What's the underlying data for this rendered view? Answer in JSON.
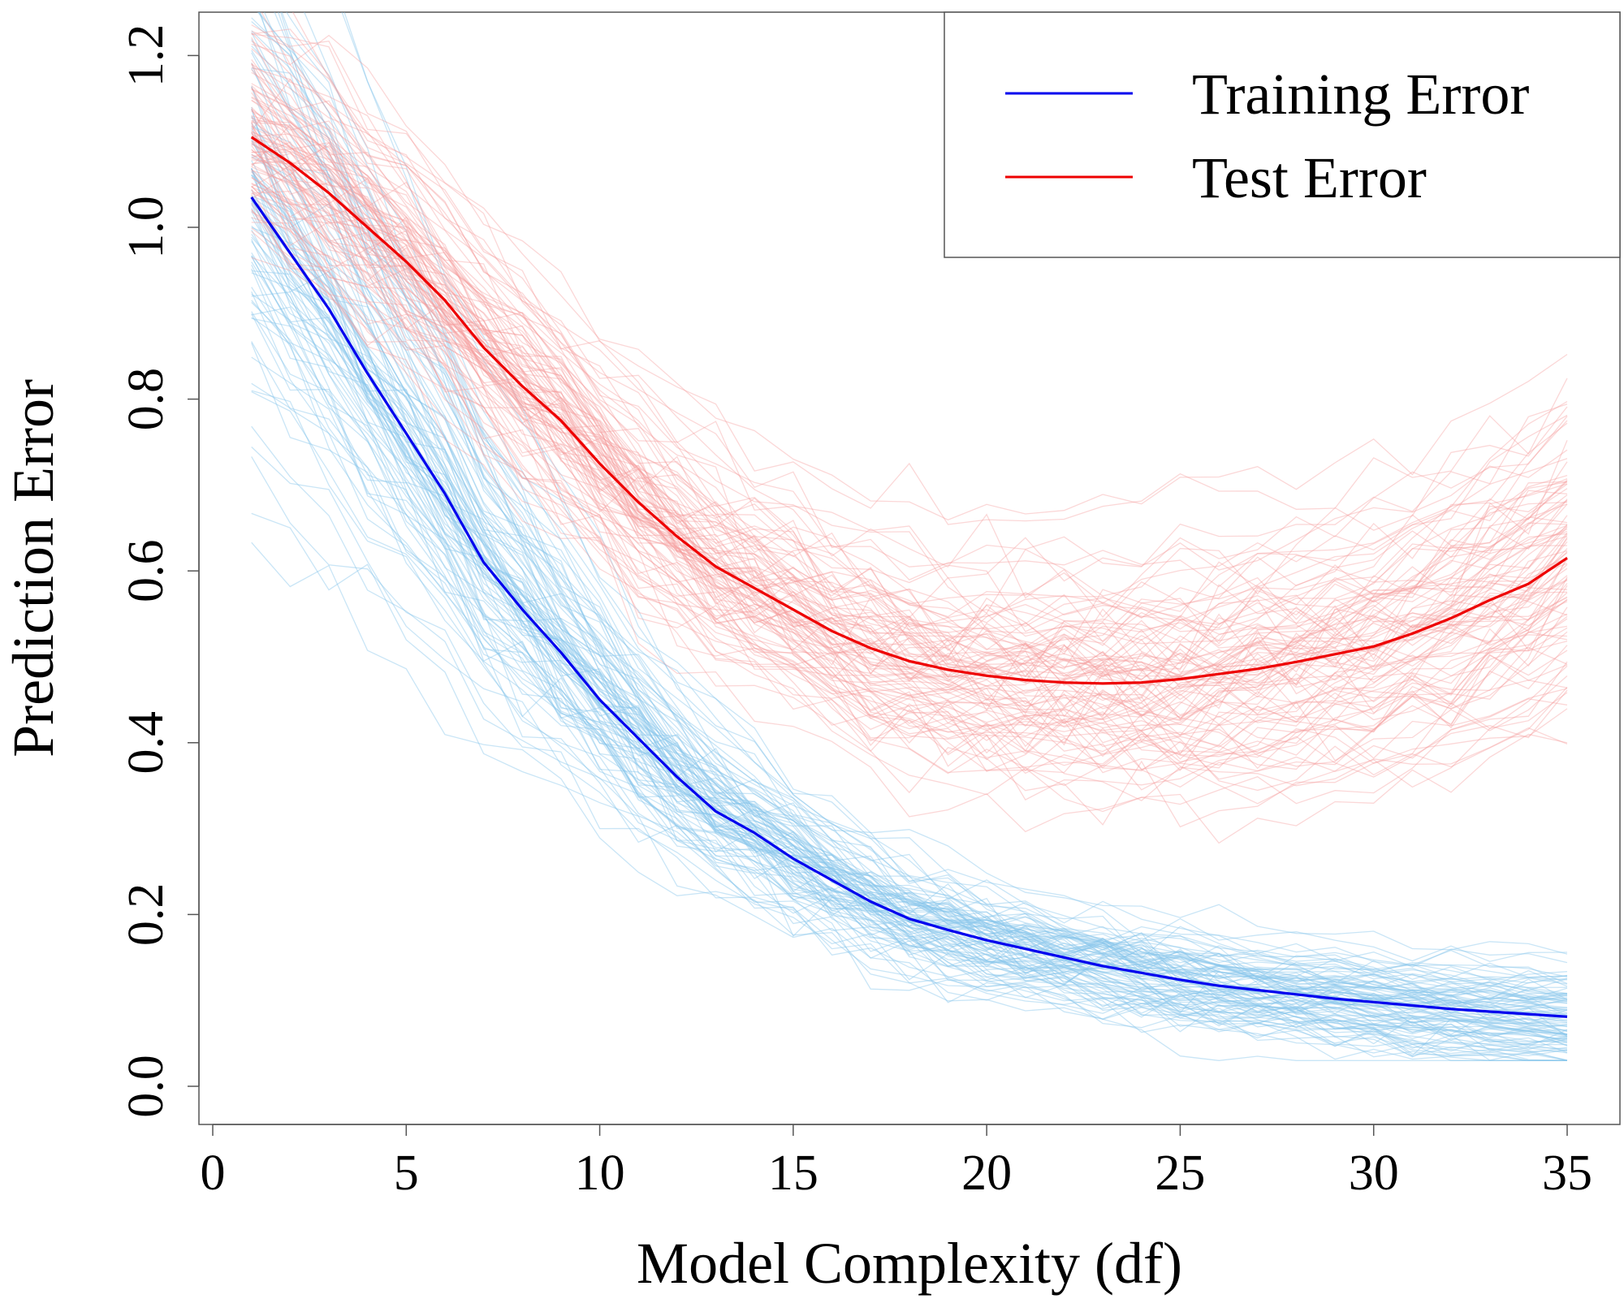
{
  "chart_data": {
    "type": "line",
    "title": "",
    "xlabel": "Model Complexity (df)",
    "ylabel": "Prediction Error",
    "xlim": [
      -0.5,
      36.5
    ],
    "ylim": [
      -0.08,
      1.25
    ],
    "x_ticks": [
      0,
      5,
      10,
      15,
      20,
      25,
      30,
      35
    ],
    "x_tick_labels": [
      "0",
      "5",
      "10",
      "15",
      "20",
      "25",
      "30",
      "35"
    ],
    "y_ticks": [
      0.0,
      0.2,
      0.4,
      0.6,
      0.8,
      1.0,
      1.2
    ],
    "y_tick_labels": [
      "0.0",
      "0.2",
      "0.4",
      "0.6",
      "0.8",
      "1.0",
      "1.2"
    ],
    "grid": false,
    "legend_position": "top-right",
    "legend": [
      {
        "label": "Training Error",
        "color": "#0000ee"
      },
      {
        "label": "Test Error",
        "color": "#ee0000"
      }
    ],
    "x": [
      1,
      2,
      3,
      4,
      5,
      6,
      7,
      8,
      9,
      10,
      11,
      12,
      13,
      14,
      15,
      16,
      17,
      18,
      19,
      20,
      21,
      22,
      23,
      24,
      25,
      26,
      27,
      28,
      29,
      30,
      31,
      32,
      33,
      34,
      35
    ],
    "series": [
      {
        "name": "Training Error",
        "color": "#0000ee",
        "values": [
          1.035,
          0.97,
          0.905,
          0.83,
          0.76,
          0.69,
          0.61,
          0.555,
          0.505,
          0.45,
          0.405,
          0.36,
          0.32,
          0.295,
          0.265,
          0.24,
          0.215,
          0.195,
          0.182,
          0.17,
          0.16,
          0.15,
          0.14,
          0.132,
          0.124,
          0.117,
          0.112,
          0.107,
          0.102,
          0.098,
          0.094,
          0.09,
          0.087,
          0.084,
          0.081
        ]
      },
      {
        "name": "Test Error",
        "color": "#ee0000",
        "values": [
          1.105,
          1.075,
          1.04,
          1.0,
          0.96,
          0.915,
          0.86,
          0.815,
          0.775,
          0.725,
          0.68,
          0.64,
          0.605,
          0.58,
          0.555,
          0.53,
          0.51,
          0.495,
          0.485,
          0.478,
          0.473,
          0.47,
          0.469,
          0.47,
          0.474,
          0.48,
          0.486,
          0.494,
          0.503,
          0.512,
          0.527,
          0.545,
          0.566,
          0.585,
          0.615
        ]
      }
    ],
    "background_curves": {
      "count_per_series": 100,
      "training_color": "#87c6ec",
      "test_color": "#f59c9c",
      "description_note": ""
    }
  }
}
